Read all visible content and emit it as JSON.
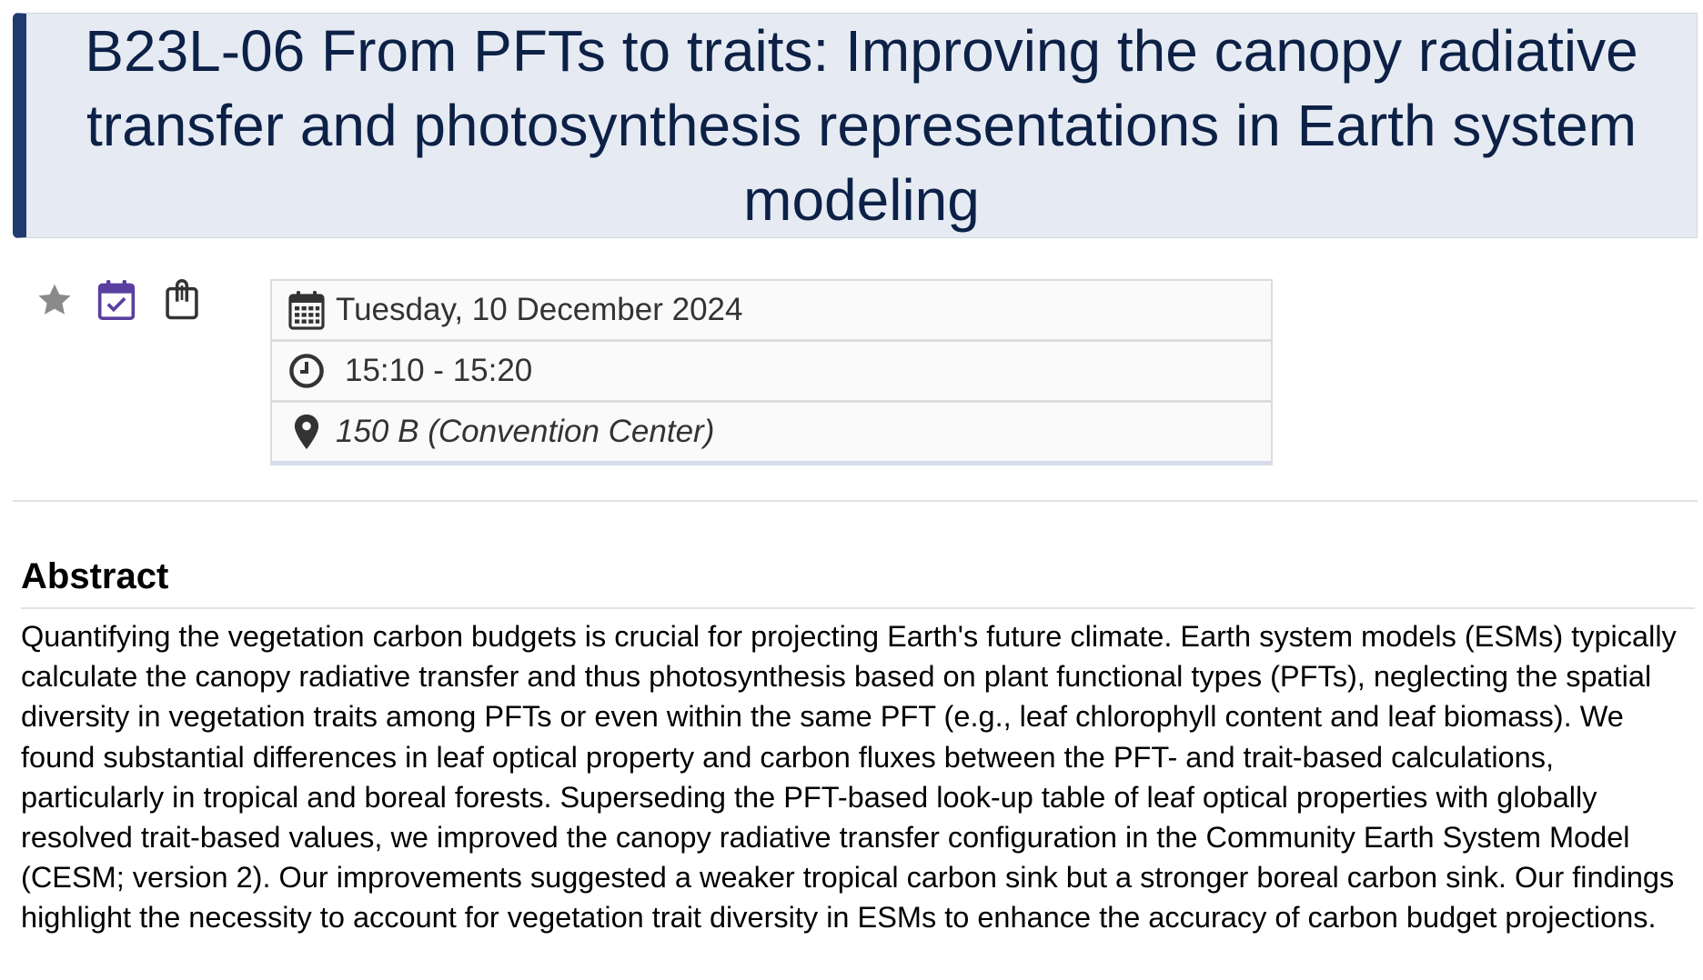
{
  "title": "B23L-06 From PFTs to traits: Improving the canopy radiative transfer and photosynthesis representations in Earth system modeling",
  "actions": [
    {
      "icon": "star-icon",
      "color": "#8a8a8a"
    },
    {
      "icon": "calendar-check-icon",
      "color": "#5a3fa0"
    },
    {
      "icon": "clipboard-icon",
      "color": "#333333"
    }
  ],
  "info": {
    "date": "Tuesday, 10 December 2024",
    "time": "15:10 - 15:20",
    "location": "150 B (Convention Center)"
  },
  "abstract": {
    "heading": "Abstract",
    "text": "Quantifying the vegetation carbon budgets is crucial for projecting Earth's future climate. Earth system models (ESMs) typically calculate the canopy radiative transfer and thus photosynthesis based on plant functional types (PFTs), neglecting the spatial diversity in vegetation traits among PFTs or even within the same PFT (e.g., leaf chlorophyll content and leaf biomass). We found substantial differences in leaf optical property and carbon fluxes between the PFT- and trait-based calculations, particularly in tropical and boreal forests. Superseding the PFT-based look-up table of leaf optical properties with globally resolved trait-based values, we improved the canopy radiative transfer configuration in the Community Earth System Model (CESM; version 2). Our improvements suggested a weaker tropical carbon sink but a stronger boreal carbon sink. Our findings highlight the necessity to account for vegetation trait diversity in ESMs to enhance the accuracy of carbon budget projections."
  }
}
